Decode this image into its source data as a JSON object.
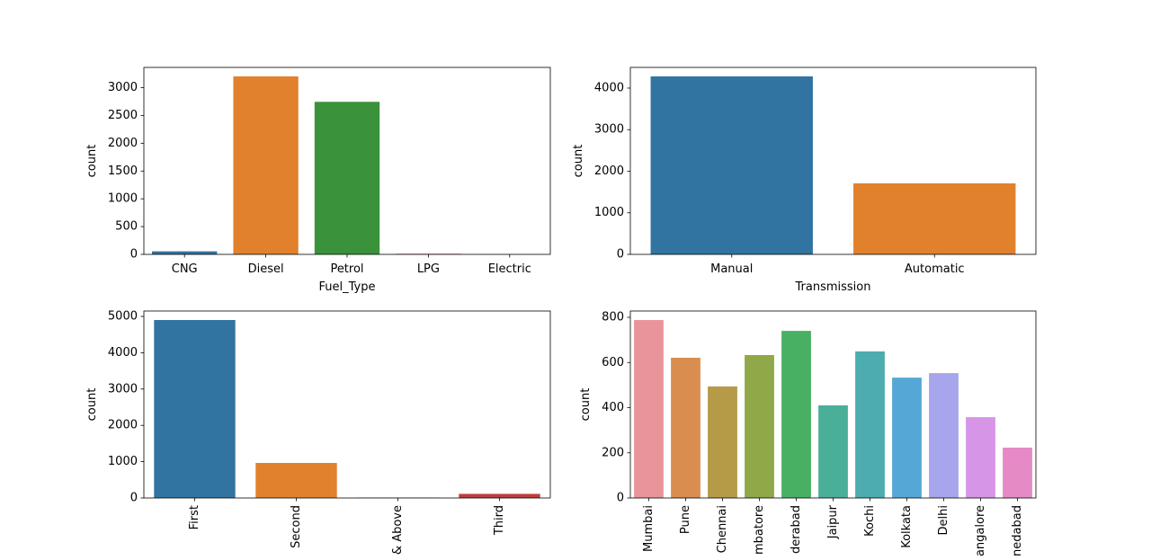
{
  "chart_data": [
    {
      "type": "bar",
      "categories": [
        "CNG",
        "Diesel",
        "Petrol",
        "LPG",
        "Electric"
      ],
      "values": [
        55,
        3202,
        2745,
        10,
        2
      ],
      "colors": [
        "#3274a1",
        "#e1812c",
        "#3a923a",
        "#c03d3e",
        "#9372b2"
      ],
      "ylim": [
        0,
        3364
      ],
      "yticks": [
        0,
        500,
        1000,
        1500,
        2000,
        2500,
        3000
      ],
      "xlabel": "Fuel_Type",
      "ylabel": "count",
      "x_tick_rotation": 0
    },
    {
      "type": "bar",
      "categories": [
        "Manual",
        "Automatic"
      ],
      "values": [
        4281,
        1708
      ],
      "colors": [
        "#3274a1",
        "#e1812c"
      ],
      "ylim": [
        0,
        4497
      ],
      "yticks": [
        0,
        1000,
        2000,
        3000,
        4000
      ],
      "xlabel": "Transmission",
      "ylabel": "count",
      "x_tick_rotation": 0
    },
    {
      "type": "bar",
      "categories": [
        "First",
        "Second",
        "& Above",
        "Third"
      ],
      "values": [
        4901,
        965,
        8,
        113
      ],
      "colors": [
        "#3274a1",
        "#e1812c",
        "#3a923a",
        "#c03d3e"
      ],
      "ylim": [
        0,
        5149
      ],
      "yticks": [
        0,
        1000,
        2000,
        3000,
        4000,
        5000
      ],
      "ylabel": "count",
      "x_tick_rotation": 90
    },
    {
      "type": "bar",
      "categories": [
        "Mumbai",
        "Pune",
        "Chennai",
        "mbatore",
        "derabad",
        "Jaipur",
        "Kochi",
        "Kolkata",
        "Delhi",
        "angalore",
        "nedabad"
      ],
      "values": [
        788,
        621,
        494,
        633,
        740,
        410,
        649,
        533,
        553,
        358,
        223
      ],
      "colors": [
        "#e9949a",
        "#d98e50",
        "#b59a48",
        "#8fa848",
        "#48b063",
        "#4aaf98",
        "#4cacaf",
        "#55a8d5",
        "#a7a6ec",
        "#d795e8",
        "#e68ac5"
      ],
      "ylim": [
        0,
        828
      ],
      "yticks": [
        0,
        200,
        400,
        600,
        800
      ],
      "ylabel": "count",
      "x_tick_rotation": 90
    }
  ]
}
